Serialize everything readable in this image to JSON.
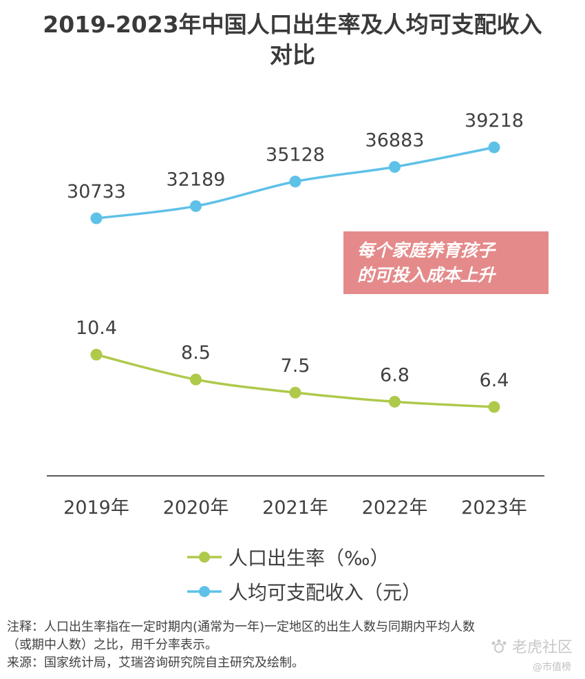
{
  "title_line1": "2019-2023年中国人口出生率及人均可支配收入",
  "title_line2": "对比",
  "callout": {
    "line1": "每个家庭养育孩子",
    "line2": "的可投入成本上升"
  },
  "legend": {
    "birth_rate": "人口出生率（‰）",
    "income": "人均可支配收入（元）"
  },
  "note": {
    "line1": "注释：人口出生率指在一定时期内(通常为一年)一定地区的出生人数与同期内平均人数",
    "line2": "（或期中人数）之比，用千分率表示。",
    "line3": "来源：国家统计局，艾瑞咨询研究院自主研究及绘制。"
  },
  "watermark": {
    "main": "老虎社区",
    "sub": "@市值榜"
  },
  "colors": {
    "birth_rate": "#afc94b",
    "income": "#5ec1e8",
    "callout_bg": "#e48a8a",
    "axis": "#595959"
  },
  "chart_data": {
    "type": "line",
    "title": "2019-2023年中国人口出生率及人均可支配收入对比",
    "categories": [
      "2019年",
      "2020年",
      "2021年",
      "2022年",
      "2023年"
    ],
    "series": [
      {
        "name": "人口出生率（‰）",
        "values": [
          10.4,
          8.5,
          7.5,
          6.8,
          6.4
        ],
        "labels": [
          "10.4",
          "8.5",
          "7.5",
          "6.8",
          "6.4"
        ]
      },
      {
        "name": "人均可支配收入（元）",
        "values": [
          30733,
          32189,
          35128,
          36883,
          39218
        ],
        "labels": [
          "30733",
          "32189",
          "35128",
          "36883",
          "39218"
        ]
      }
    ],
    "xlabel": "",
    "ylabel": "",
    "grid": false,
    "legend_position": "bottom"
  }
}
